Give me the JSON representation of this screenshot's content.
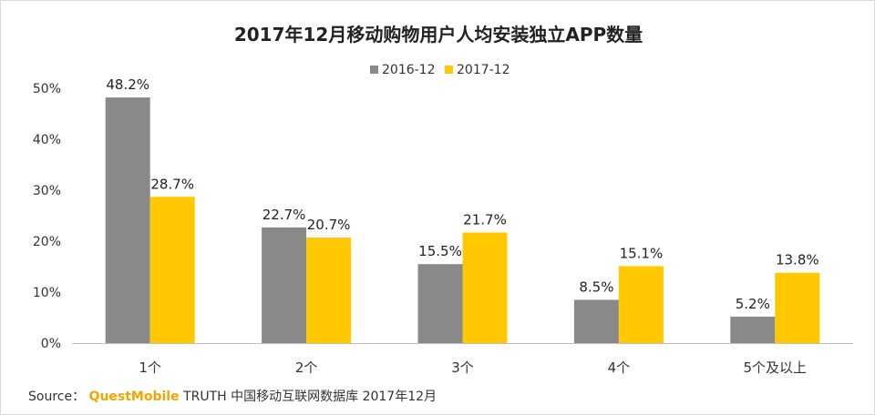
{
  "chart_data": {
    "type": "bar",
    "title": "2017年12月移动购物用户人均安装独立APP数量",
    "categories": [
      "1个",
      "2个",
      "3个",
      "4个",
      "5个及以上"
    ],
    "series": [
      {
        "name": "2016-12",
        "values": [
          48.2,
          22.7,
          15.5,
          8.5,
          5.2
        ],
        "labels": [
          "48.2%",
          "22.7%",
          "15.5%",
          "8.5%",
          "5.2%"
        ],
        "color": "#898989"
      },
      {
        "name": "2017-12",
        "values": [
          28.7,
          20.7,
          21.7,
          15.1,
          13.8
        ],
        "labels": [
          "28.7%",
          "20.7%",
          "21.7%",
          "15.1%",
          "13.8%"
        ],
        "color": "#ffc800"
      }
    ],
    "ylim": [
      0,
      50
    ],
    "yticks": [
      0,
      10,
      20,
      30,
      40,
      50
    ],
    "ytick_labels": [
      "0%",
      "10%",
      "20%",
      "30%",
      "40%",
      "50%"
    ],
    "legend_position": "top-center",
    "grid": false
  },
  "source": {
    "prefix": "Source：",
    "brand": "QuestMobile",
    "text": "TRUTH 中国移动互联网数据库 2017年12月"
  }
}
